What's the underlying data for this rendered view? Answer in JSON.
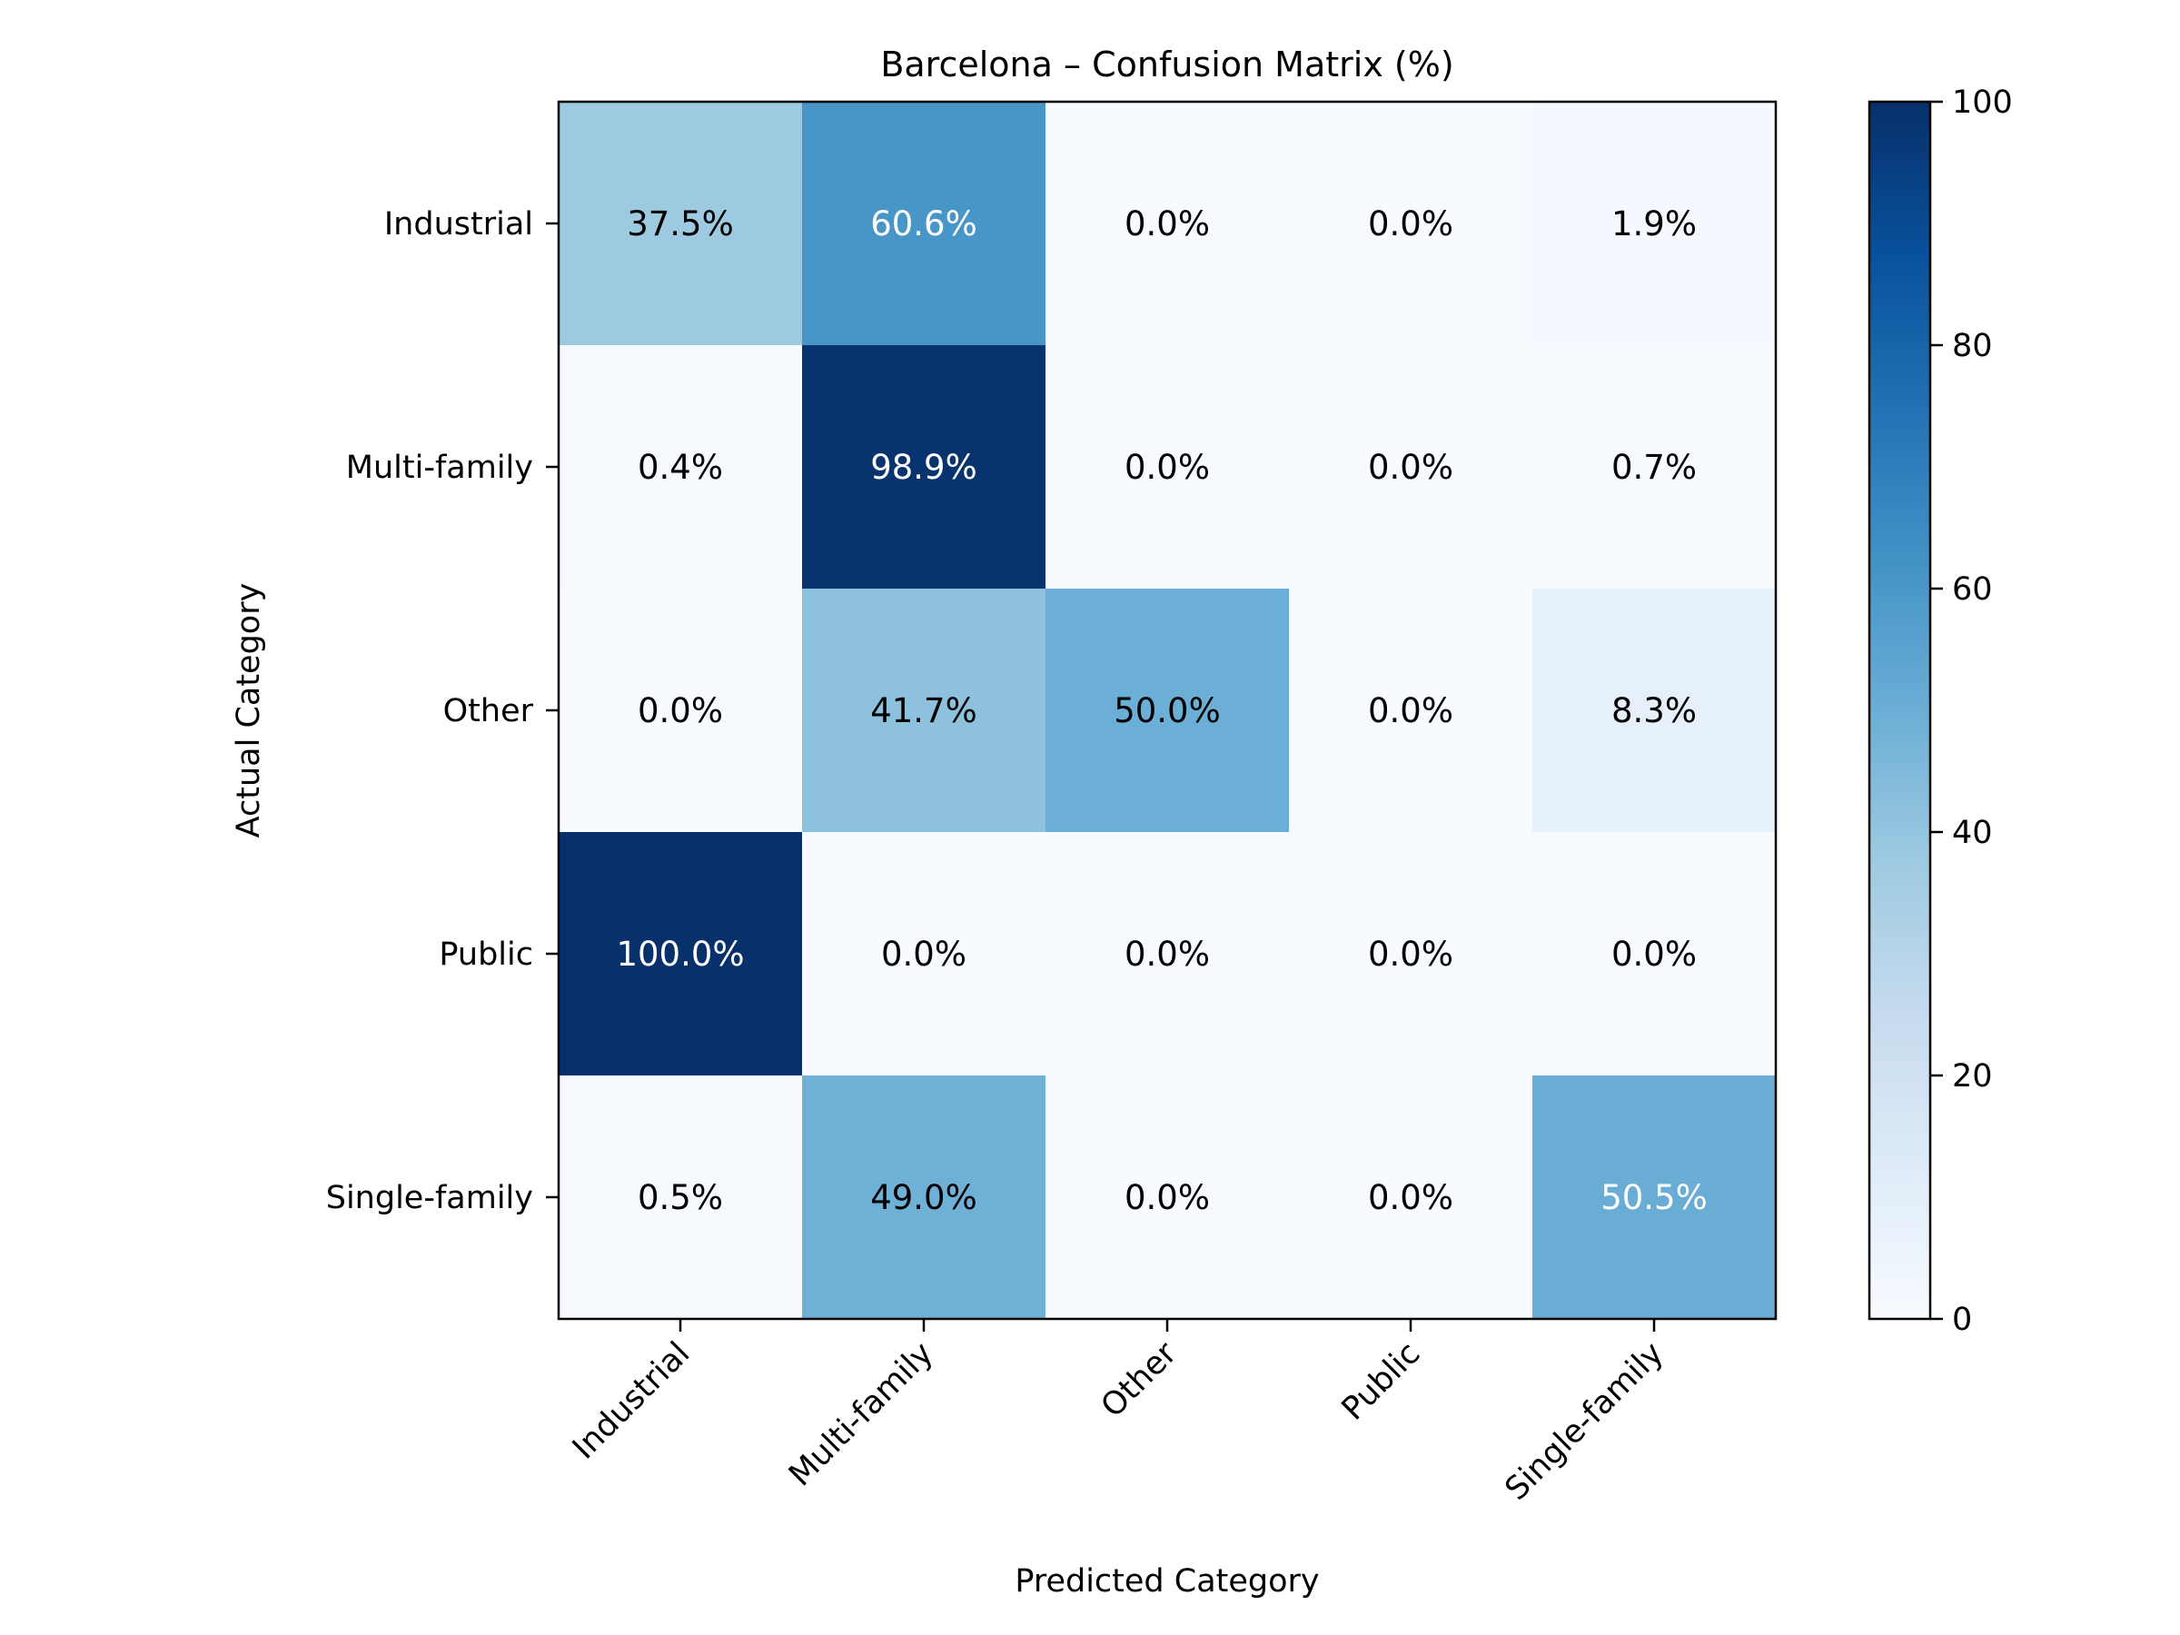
{
  "chart_data": {
    "type": "heatmap",
    "title": "Barcelona – Confusion Matrix (%)",
    "xlabel": "Predicted Category",
    "ylabel": "Actual Category",
    "x_categories": [
      "Industrial",
      "Multi-family",
      "Other",
      "Public",
      "Single-family"
    ],
    "y_categories": [
      "Industrial",
      "Multi-family",
      "Other",
      "Public",
      "Single-family"
    ],
    "values": [
      [
        37.5,
        60.6,
        0.0,
        0.0,
        1.9
      ],
      [
        0.4,
        98.9,
        0.0,
        0.0,
        0.7
      ],
      [
        0.0,
        41.7,
        50.0,
        0.0,
        8.3
      ],
      [
        100.0,
        0.0,
        0.0,
        0.0,
        0.0
      ],
      [
        0.5,
        49.0,
        0.0,
        0.0,
        50.5
      ]
    ],
    "cell_labels": [
      [
        "37.5%",
        "60.6%",
        "0.0%",
        "0.0%",
        "1.9%"
      ],
      [
        "0.4%",
        "98.9%",
        "0.0%",
        "0.0%",
        "0.7%"
      ],
      [
        "0.0%",
        "41.7%",
        "50.0%",
        "0.0%",
        "8.3%"
      ],
      [
        "100.0%",
        "0.0%",
        "0.0%",
        "0.0%",
        "0.0%"
      ],
      [
        "0.5%",
        "49.0%",
        "0.0%",
        "0.0%",
        "50.5%"
      ]
    ],
    "colormap": "Blues",
    "colorbar": {
      "range": [
        0,
        100
      ],
      "ticks": [
        0,
        20,
        40,
        60,
        80,
        100
      ],
      "tick_labels": [
        "0",
        "20",
        "40",
        "60",
        "80",
        "100"
      ]
    },
    "grid": false,
    "colors": {
      "low": "#f7fbff",
      "high": "#08306b",
      "label_dark": "#000000",
      "label_light": "#ffffff"
    }
  }
}
